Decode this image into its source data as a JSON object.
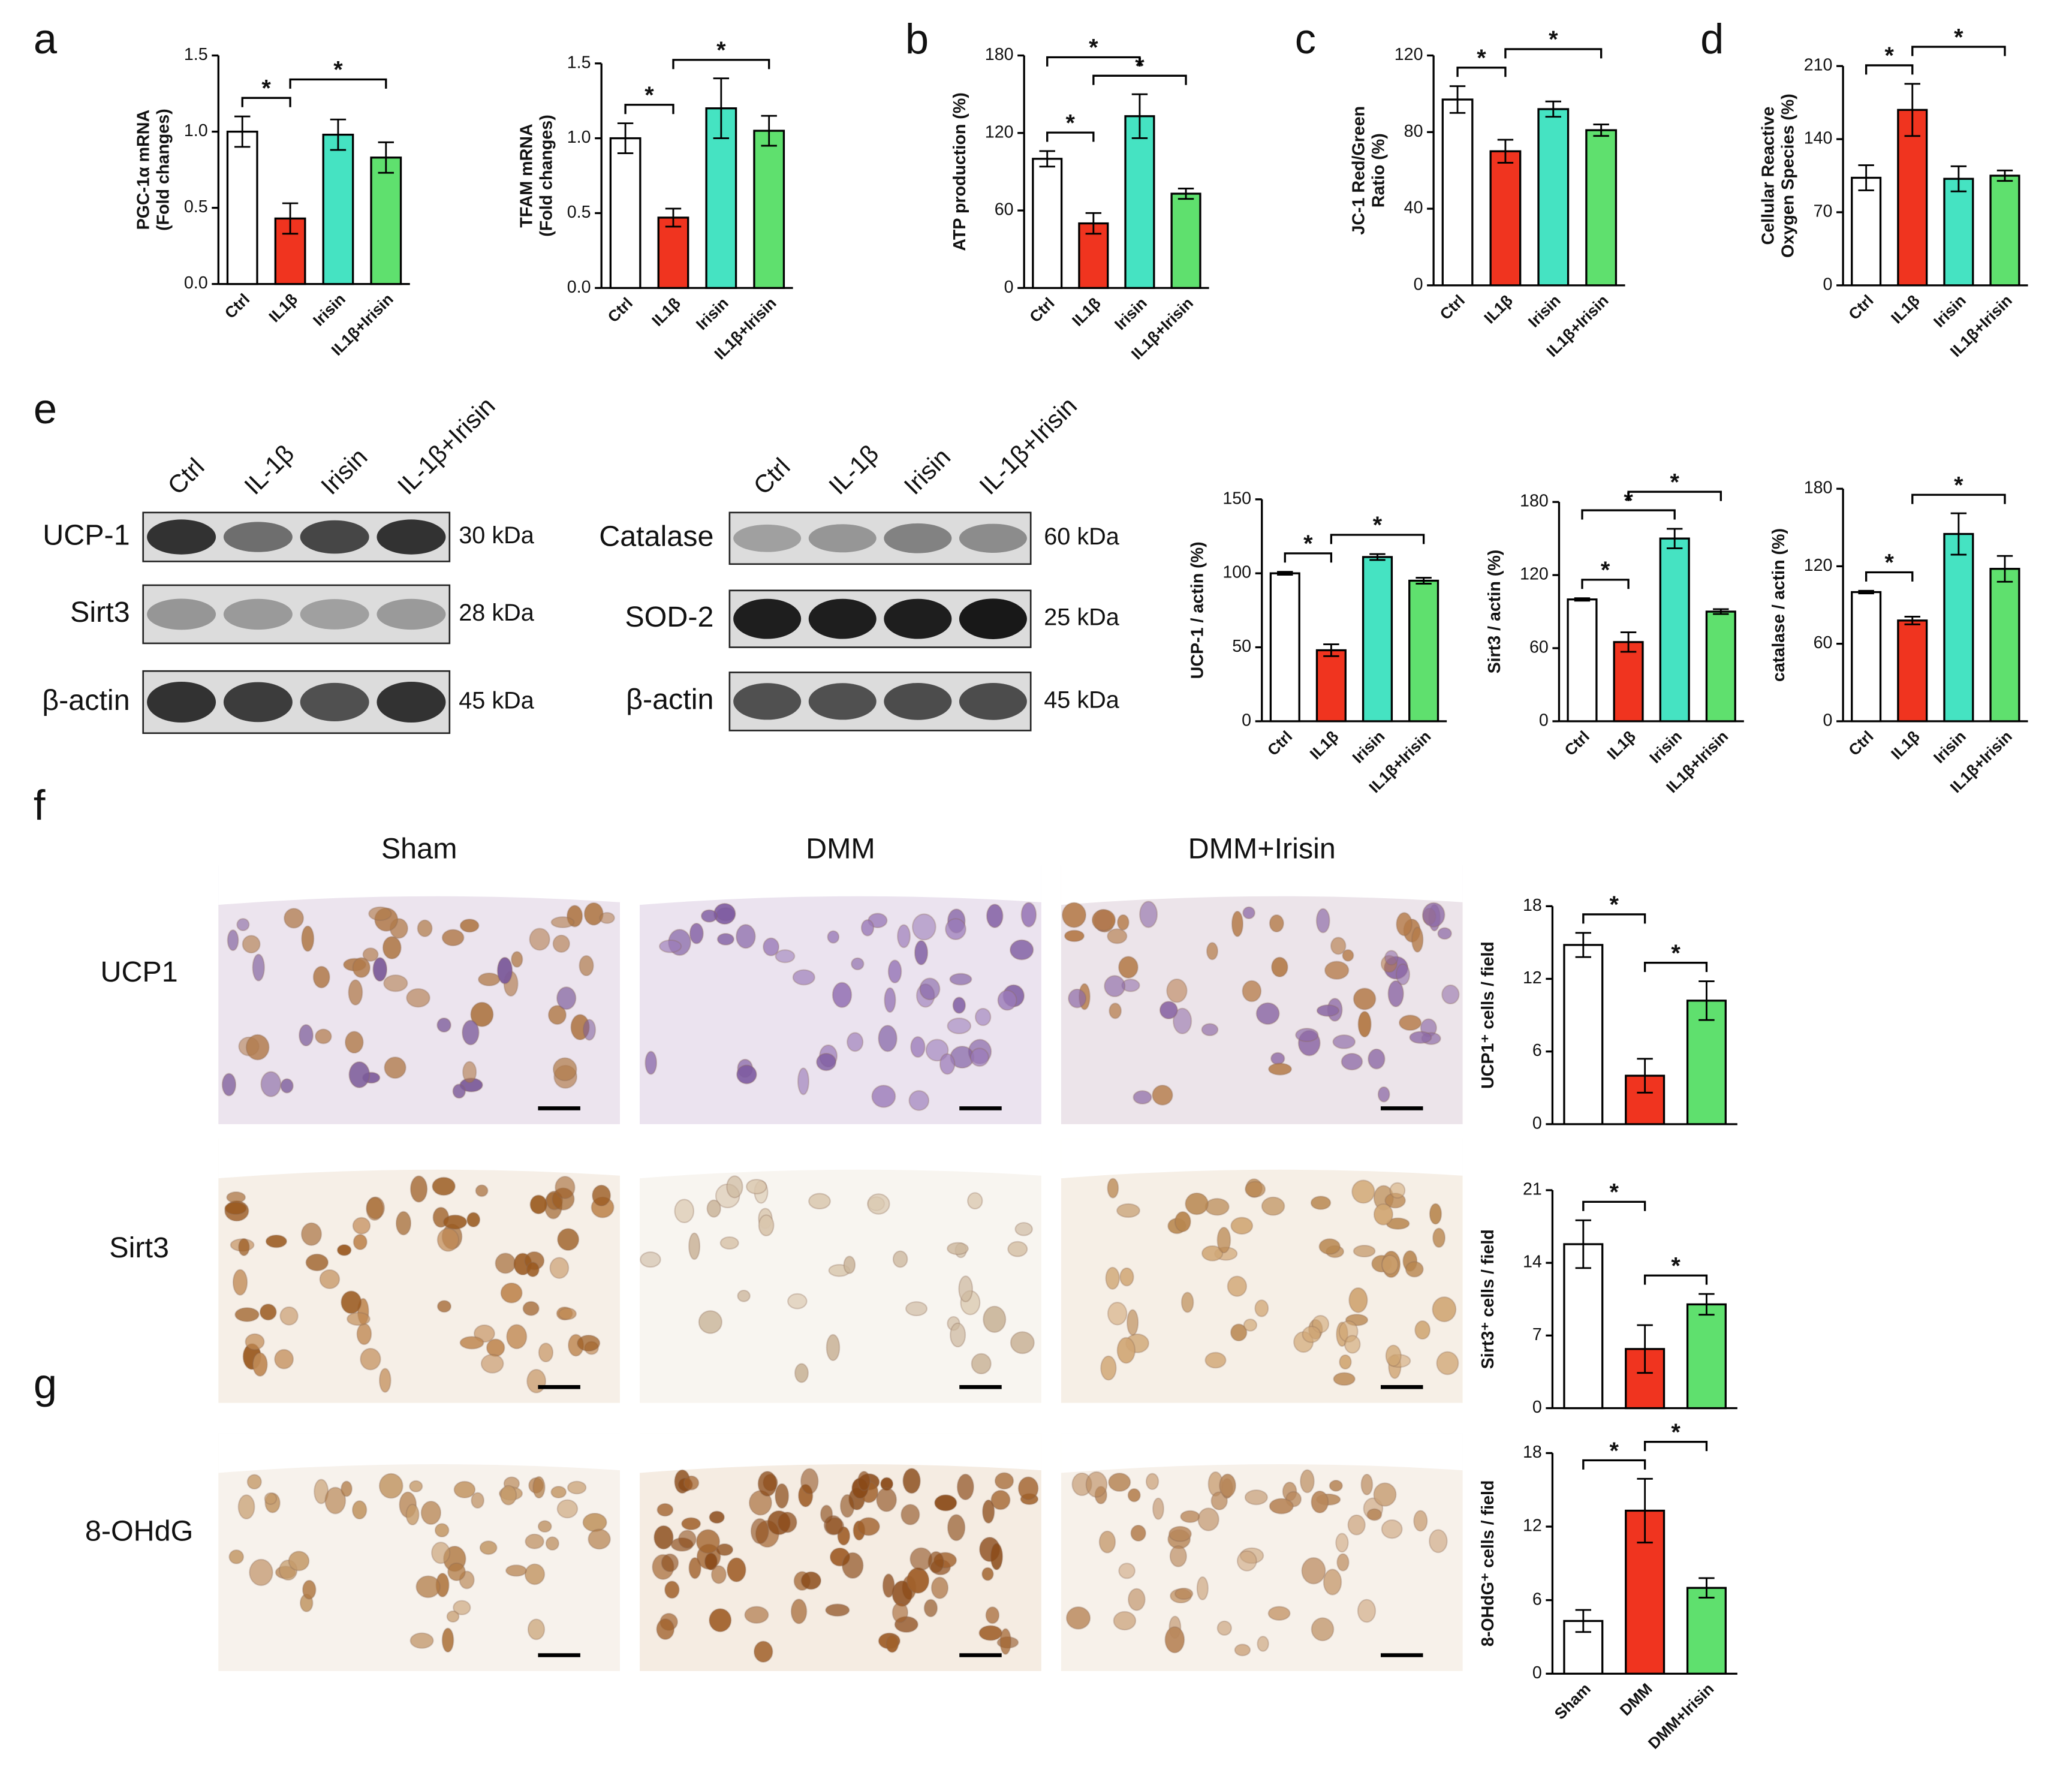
{
  "chart_data": [
    {
      "type": "bar",
      "ylabel": [
        "PGC-1α mRNA",
        "(Fold changes)"
      ],
      "categories": [
        "Ctrl",
        "IL1β",
        "Irisin",
        "IL1β+Irisin"
      ],
      "values": [
        1.0,
        0.43,
        0.98,
        0.83
      ],
      "errors": [
        0.1,
        0.1,
        0.1,
        0.1
      ],
      "colors": [
        "#ffffff",
        "#f0341f",
        "#45e3c2",
        "#5fe06e"
      ],
      "ylim": [
        0,
        1.5
      ],
      "yticks": [
        {
          "value": 0,
          "label": "0.0"
        },
        0.5,
        {
          "value": 1,
          "label": "1.0"
        },
        1.5
      ],
      "significance": [
        {
          "from": 0,
          "to": 1,
          "label": "*"
        },
        {
          "from": 1,
          "to": 3,
          "label": "*"
        }
      ]
    },
    {
      "type": "bar",
      "ylabel": [
        "TFAM mRNA",
        "(Fold changes)"
      ],
      "categories": [
        "Ctrl",
        "IL1β",
        "Irisin",
        "IL1β+Irisin"
      ],
      "values": [
        1.0,
        0.47,
        1.2,
        1.05
      ],
      "errors": [
        0.1,
        0.06,
        0.2,
        0.1
      ],
      "colors": [
        "#ffffff",
        "#f0341f",
        "#45e3c2",
        "#5fe06e"
      ],
      "ylim": [
        0,
        1.5
      ],
      "yticks": [
        {
          "value": 0,
          "label": "0.0"
        },
        0.5,
        {
          "value": 1,
          "label": "1.0"
        },
        1.5
      ],
      "significance": [
        {
          "from": 0,
          "to": 1,
          "label": "*"
        },
        {
          "from": 1,
          "to": 3,
          "label": "*"
        }
      ]
    },
    {
      "type": "bar",
      "ylabel": [
        "ATP production (%)"
      ],
      "categories": [
        "Ctrl",
        "IL1β",
        "Irisin",
        "IL1β+Irisin"
      ],
      "values": [
        100,
        50,
        133,
        73
      ],
      "errors": [
        6,
        8,
        17,
        4
      ],
      "colors": [
        "#ffffff",
        "#f0341f",
        "#45e3c2",
        "#5fe06e"
      ],
      "ylim": [
        0,
        180
      ],
      "yticks": [
        0,
        60,
        120,
        180
      ],
      "significance": [
        {
          "from": 0,
          "to": 1,
          "label": "*"
        },
        {
          "from": 1,
          "to": 3,
          "label": "*"
        },
        {
          "from": 0,
          "to": 2,
          "label": "*"
        }
      ]
    },
    {
      "type": "bar",
      "ylabel": [
        "JC-1 Red/Green",
        "Ratio (%)"
      ],
      "categories": [
        "Ctrl",
        "IL1β",
        "Irisin",
        "IL1β+Irisin"
      ],
      "values": [
        97,
        70,
        92,
        81
      ],
      "errors": [
        7,
        6,
        4,
        3
      ],
      "colors": [
        "#ffffff",
        "#f0341f",
        "#45e3c2",
        "#5fe06e"
      ],
      "ylim": [
        0,
        120
      ],
      "yticks": [
        0,
        40,
        80,
        120
      ],
      "significance": [
        {
          "from": 0,
          "to": 1,
          "label": "*"
        },
        {
          "from": 1,
          "to": 3,
          "label": "*"
        }
      ]
    },
    {
      "type": "bar",
      "ylabel": [
        "Cellular Reactive",
        "Oxygen Species (%)"
      ],
      "categories": [
        "Ctrl",
        "IL1β",
        "Irisin",
        "IL1β+Irisin"
      ],
      "values": [
        103,
        168,
        102,
        105
      ],
      "errors": [
        12,
        25,
        12,
        5
      ],
      "colors": [
        "#ffffff",
        "#f0341f",
        "#45e3c2",
        "#5fe06e"
      ],
      "ylim": [
        0,
        210
      ],
      "yticks": [
        0,
        70,
        140,
        210
      ],
      "significance": [
        {
          "from": 0,
          "to": 1,
          "label": "*"
        },
        {
          "from": 1,
          "to": 3,
          "label": "*"
        }
      ]
    },
    {
      "type": "bar",
      "ylabel": [
        "UCP-1 / actin (%)"
      ],
      "categories": [
        "Ctrl",
        "IL1β",
        "Irisin",
        "IL1β+Irisin"
      ],
      "values": [
        100,
        48,
        111,
        95
      ],
      "errors": [
        1,
        4,
        2,
        2
      ],
      "colors": [
        "#ffffff",
        "#f0341f",
        "#45e3c2",
        "#5fe06e"
      ],
      "ylim": [
        0,
        150
      ],
      "yticks": [
        0,
        50,
        100,
        150
      ],
      "significance": [
        {
          "from": 0,
          "to": 1,
          "label": "*"
        },
        {
          "from": 1,
          "to": 3,
          "label": "*"
        }
      ]
    },
    {
      "type": "bar",
      "ylabel": [
        "Sirt3 / actin (%)"
      ],
      "categories": [
        "Ctrl",
        "IL1β",
        "Irisin",
        "IL1β+Irisin"
      ],
      "values": [
        100,
        65,
        150,
        90
      ],
      "errors": [
        1,
        8,
        8,
        2
      ],
      "colors": [
        "#ffffff",
        "#f0341f",
        "#45e3c2",
        "#5fe06e"
      ],
      "ylim": [
        0,
        180
      ],
      "yticks": [
        0,
        60,
        120,
        180
      ],
      "significance": [
        {
          "from": 0,
          "to": 1,
          "label": "*"
        },
        {
          "from": 0,
          "to": 2,
          "label": "*"
        },
        {
          "from": 1,
          "to": 3,
          "label": "*"
        }
      ]
    },
    {
      "type": "bar",
      "ylabel": [
        "catalase / actin (%)"
      ],
      "categories": [
        "Ctrl",
        "IL1β",
        "Irisin",
        "IL1β+Irisin"
      ],
      "values": [
        100,
        78,
        145,
        118
      ],
      "errors": [
        1,
        3,
        16,
        10
      ],
      "colors": [
        "#ffffff",
        "#f0341f",
        "#45e3c2",
        "#5fe06e"
      ],
      "ylim": [
        0,
        180
      ],
      "yticks": [
        0,
        60,
        120,
        180
      ],
      "significance": [
        {
          "from": 0,
          "to": 1,
          "label": "*"
        },
        {
          "from": 1,
          "to": 3,
          "label": "*"
        }
      ]
    },
    {
      "type": "bar",
      "ylabel": [
        "UCP1⁺ cells / field"
      ],
      "values": [
        14.8,
        4.0,
        10.2
      ],
      "errors": [
        1.0,
        1.4,
        1.6
      ],
      "colors": [
        "#ffffff",
        "#f0341f",
        "#5fe06e"
      ],
      "ylim": [
        0,
        18
      ],
      "yticks": [
        0,
        6,
        12,
        18
      ],
      "significance": [
        {
          "from": 0,
          "to": 1,
          "label": "*"
        },
        {
          "from": 1,
          "to": 2,
          "label": "*"
        }
      ]
    },
    {
      "type": "bar",
      "ylabel": [
        "Sirt3⁺ cells / field"
      ],
      "values": [
        15.8,
        5.7,
        10.0
      ],
      "errors": [
        2.3,
        2.3,
        1.0
      ],
      "colors": [
        "#ffffff",
        "#f0341f",
        "#5fe06e"
      ],
      "ylim": [
        0,
        21
      ],
      "yticks": [
        0,
        7,
        14,
        21
      ],
      "significance": [
        {
          "from": 0,
          "to": 1,
          "label": "*"
        },
        {
          "from": 1,
          "to": 2,
          "label": "*"
        }
      ]
    },
    {
      "type": "bar",
      "ylabel": [
        "8-OHdG⁺ cells / field"
      ],
      "categories": [
        "Sham",
        "DMM",
        "DMM+Irisin"
      ],
      "values": [
        4.3,
        13.3,
        7.0
      ],
      "errors": [
        0.9,
        2.6,
        0.8
      ],
      "colors": [
        "#ffffff",
        "#f0341f",
        "#5fe06e"
      ],
      "ylim": [
        0,
        18
      ],
      "yticks": [
        0,
        6,
        12,
        18
      ],
      "significance": [
        {
          "from": 0,
          "to": 1,
          "label": "*"
        },
        {
          "from": 1,
          "to": 2,
          "label": "*"
        }
      ]
    }
  ],
  "figure": {
    "panel_labels": [
      "a",
      "b",
      "c",
      "d",
      "e",
      "f",
      "g"
    ],
    "blots": [
      {
        "lanes": [
          "Ctrl",
          "IL-1β",
          "Irisin",
          "IL-1β+Irisin"
        ],
        "rows": [
          {
            "name": "UCP-1",
            "size": "30 kDa"
          },
          {
            "name": "Sirt3",
            "size": "28 kDa"
          },
          {
            "name": "β-actin",
            "size": "45 kDa"
          }
        ]
      },
      {
        "lanes": [
          "Ctrl",
          "IL-1β",
          "Irisin",
          "IL-1β+Irisin"
        ],
        "rows": [
          {
            "name": "Catalase",
            "size": "60 kDa"
          },
          {
            "name": "SOD-2",
            "size": "25 kDa"
          },
          {
            "name": "β-actin",
            "size": "45 kDa"
          }
        ]
      }
    ],
    "histology": {
      "columns": [
        "Sham",
        "DMM",
        "DMM+Irisin"
      ],
      "rows": [
        "UCP1",
        "Sirt3",
        "8-OHdG"
      ]
    }
  }
}
